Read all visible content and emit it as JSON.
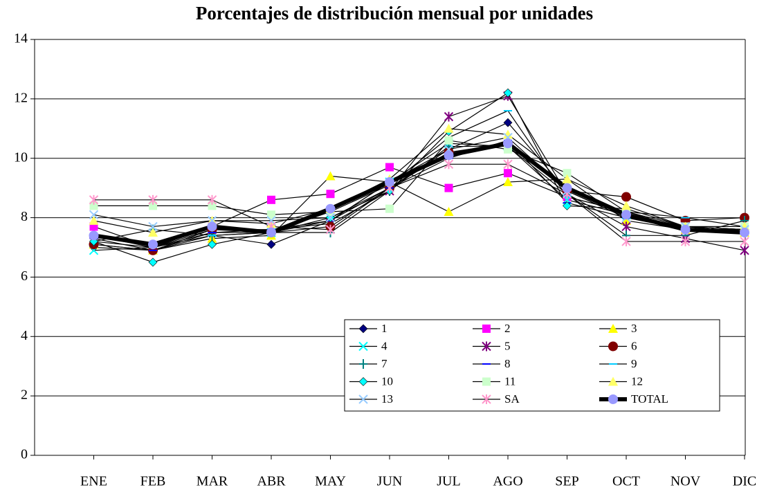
{
  "chart_data": {
    "type": "line",
    "title": "Porcentajes de distribución mensual por unidades",
    "categories": [
      "ENE",
      "FEB",
      "MAR",
      "ABR",
      "MAY",
      "JUN",
      "JUL",
      "AGO",
      "SEP",
      "OCT",
      "NOV",
      "DIC"
    ],
    "ylim": [
      0,
      14
    ],
    "yticks": [
      0,
      2,
      4,
      6,
      8,
      10,
      12,
      14
    ],
    "grid": true,
    "series": [
      {
        "name": "1",
        "color": "#000080",
        "marker": "diamond",
        "values": [
          7.0,
          6.9,
          7.4,
          7.1,
          7.9,
          9.2,
          10.3,
          11.2,
          8.9,
          8.0,
          7.6,
          7.6
        ]
      },
      {
        "name": "2",
        "color": "#ff00ff",
        "marker": "square",
        "values": [
          7.7,
          7.0,
          7.7,
          8.6,
          8.8,
          9.7,
          9.0,
          9.5,
          8.7,
          8.2,
          7.6,
          7.6
        ]
      },
      {
        "name": "3",
        "color": "#ffff00",
        "marker": "triangle",
        "values": [
          7.1,
          6.9,
          7.3,
          7.4,
          9.4,
          9.2,
          8.2,
          9.2,
          9.3,
          7.9,
          7.6,
          7.5
        ]
      },
      {
        "name": "4",
        "color": "#00ffff",
        "marker": "x",
        "values": [
          6.9,
          7.0,
          7.5,
          7.5,
          7.9,
          9.2,
          10.5,
          10.4,
          8.6,
          8.1,
          7.7,
          7.6
        ]
      },
      {
        "name": "5",
        "color": "#800080",
        "marker": "star",
        "values": [
          7.2,
          7.0,
          7.6,
          7.6,
          7.8,
          8.9,
          11.4,
          12.1,
          8.8,
          7.7,
          7.3,
          6.9
        ]
      },
      {
        "name": "6",
        "color": "#800000",
        "marker": "circle",
        "values": [
          7.1,
          6.9,
          7.6,
          7.5,
          7.7,
          9.0,
          10.2,
          10.5,
          8.9,
          8.7,
          7.9,
          8.0
        ]
      },
      {
        "name": "7",
        "color": "#008080",
        "marker": "plus",
        "values": [
          7.2,
          7.6,
          7.4,
          7.5,
          7.5,
          8.9,
          10.4,
          10.4,
          8.8,
          7.4,
          7.4,
          7.9
        ]
      },
      {
        "name": "8",
        "color": "#0000ff",
        "marker": "dash",
        "values": [
          7.3,
          6.9,
          7.5,
          7.6,
          7.9,
          9.0,
          10.0,
          10.6,
          8.5,
          8.0,
          7.7,
          7.6
        ]
      },
      {
        "name": "9",
        "color": "#00ccff",
        "marker": "dash",
        "values": [
          7.4,
          7.0,
          7.4,
          7.5,
          8.2,
          9.1,
          10.7,
          11.6,
          8.7,
          8.2,
          8.0,
          7.7
        ]
      },
      {
        "name": "10",
        "color": "#00ffff",
        "marker": "diamond",
        "values": [
          7.2,
          6.5,
          7.1,
          7.5,
          8.0,
          8.9,
          10.9,
          12.2,
          8.4,
          8.3,
          7.7,
          7.5
        ]
      },
      {
        "name": "11",
        "color": "#ccffcc",
        "marker": "square",
        "values": [
          8.4,
          8.4,
          8.4,
          8.1,
          8.2,
          8.3,
          10.6,
          10.3,
          9.5,
          8.2,
          7.7,
          7.7
        ]
      },
      {
        "name": "12",
        "color": "#ffff66",
        "marker": "triangle",
        "values": [
          7.9,
          7.5,
          7.9,
          7.8,
          8.3,
          9.3,
          11.0,
          10.8,
          9.3,
          8.4,
          7.7,
          7.7
        ]
      },
      {
        "name": "13",
        "color": "#99ccff",
        "marker": "x",
        "values": [
          8.1,
          7.7,
          7.9,
          7.9,
          8.0,
          9.0,
          10.3,
          10.7,
          8.9,
          8.0,
          7.7,
          7.6
        ]
      },
      {
        "name": "SA",
        "color": "#ff99cc",
        "marker": "star",
        "values": [
          8.6,
          8.6,
          8.6,
          7.7,
          7.6,
          9.0,
          9.8,
          9.8,
          8.8,
          7.2,
          7.2,
          7.2
        ]
      },
      {
        "name": "TOTAL",
        "color": "#9999ff",
        "marker": "circle",
        "line_width": 6,
        "values": [
          7.4,
          7.1,
          7.7,
          7.5,
          8.3,
          9.2,
          10.1,
          10.5,
          9.0,
          8.1,
          7.6,
          7.5
        ]
      }
    ]
  }
}
